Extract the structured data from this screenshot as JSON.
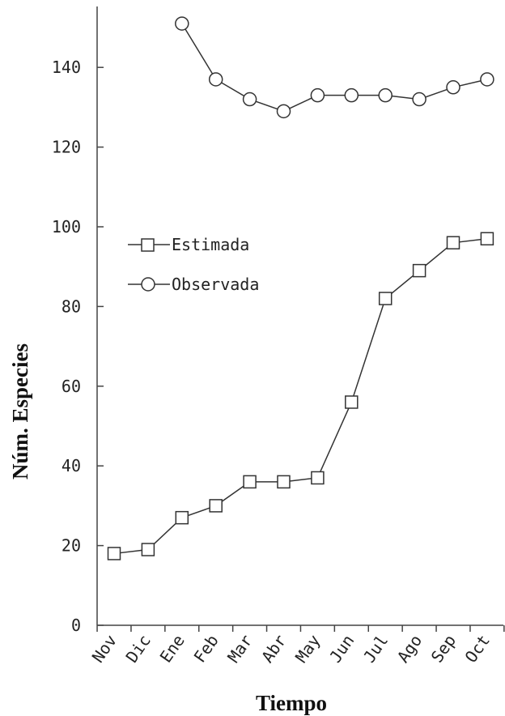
{
  "chart_data": {
    "type": "line",
    "xlabel": "Tiempo",
    "ylabel": "Núm. Especies",
    "categories": [
      "Nov",
      "Dic",
      "Ene",
      "Feb",
      "Mar",
      "Abr",
      "May",
      "Jun",
      "Jul",
      "Ago",
      "Sep",
      "Oct"
    ],
    "yticks": [
      "0",
      "20",
      "40",
      "60",
      "80",
      "100",
      "120",
      "140"
    ],
    "ylim": [
      0,
      152
    ],
    "grid": false,
    "legend_position": "left, middle",
    "series": [
      {
        "name": "Estimada",
        "marker": "square",
        "values": [
          18,
          19,
          27,
          30,
          36,
          36,
          37,
          56,
          82,
          89,
          96,
          97
        ]
      },
      {
        "name": "Observada",
        "marker": "circle",
        "values": [
          null,
          null,
          151,
          137,
          132,
          129,
          133,
          133,
          133,
          132,
          135,
          137
        ]
      }
    ],
    "colors": {
      "line": "#333333",
      "marker_fill": "#ffffff",
      "axis": "#444444"
    }
  }
}
